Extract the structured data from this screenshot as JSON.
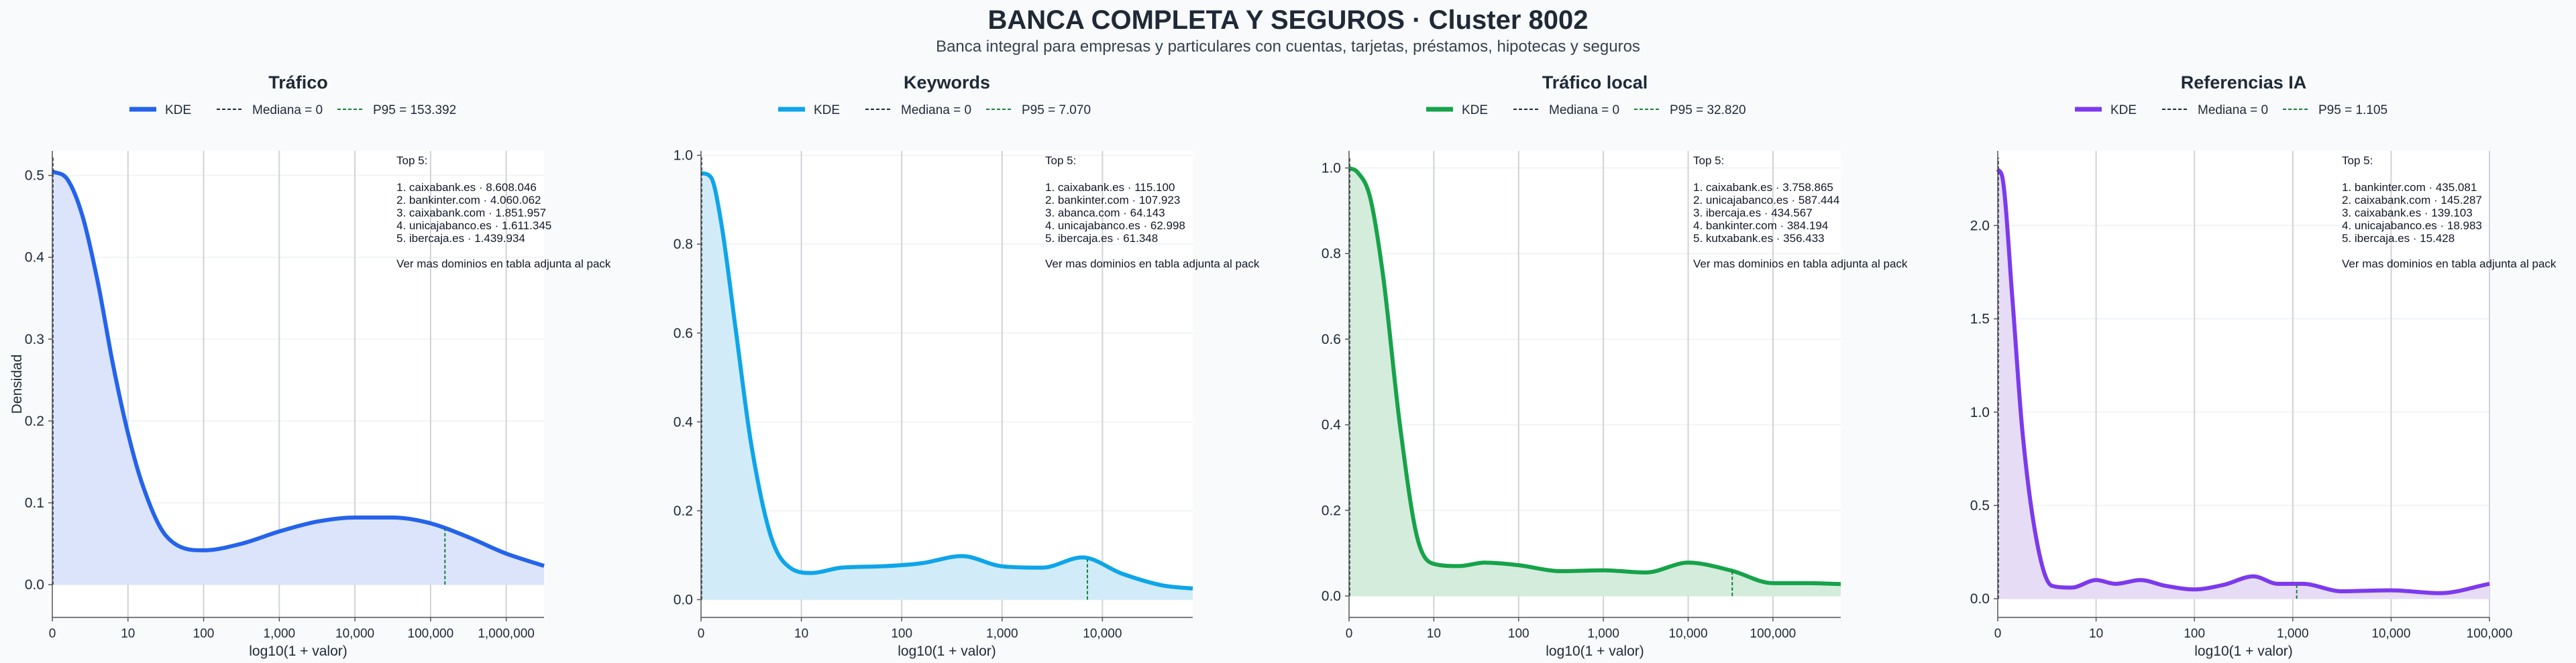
{
  "header": {
    "title": "BANCA COMPLETA Y SEGUROS · Cluster 8002",
    "subtitle": "Banca integral para empresas y particulares con cuentas, tarjetas, préstamos, hipotecas y seguros"
  },
  "chart_data": [
    {
      "type": "area",
      "title": "Tráfico",
      "xlabel": "log10(1 + valor)",
      "ylabel": "Densidad",
      "color": "#2563eb",
      "fill": "#dbe4fb",
      "legend": {
        "kde": "KDE",
        "median": "Mediana = 0",
        "p95": "P95 = 153.392"
      },
      "xlim": [
        0,
        6.5
      ],
      "ylim": [
        -0.04,
        0.53
      ],
      "xticks": [
        [
          0,
          "0"
        ],
        [
          1,
          "10"
        ],
        [
          2,
          "100"
        ],
        [
          3,
          "1,000"
        ],
        [
          4,
          "10,000"
        ],
        [
          5,
          "100,000"
        ],
        [
          6,
          "1,000,000"
        ]
      ],
      "yticks": [
        [
          0,
          "0.0"
        ],
        [
          0.1,
          "0.1"
        ],
        [
          0.2,
          "0.2"
        ],
        [
          0.3,
          "0.3"
        ],
        [
          0.4,
          "0.4"
        ],
        [
          0.5,
          "0.5"
        ]
      ],
      "p95_x": 5.19,
      "kde": {
        "x": [
          0,
          0.2,
          0.4,
          0.6,
          0.8,
          1.0,
          1.2,
          1.5,
          2.0,
          2.5,
          3.0,
          3.5,
          4.0,
          4.5,
          5.0,
          5.5,
          6.0,
          6.5
        ],
        "y": [
          0.505,
          0.495,
          0.45,
          0.37,
          0.27,
          0.185,
          0.12,
          0.06,
          0.042,
          0.05,
          0.065,
          0.077,
          0.082,
          0.082,
          0.075,
          0.058,
          0.038,
          0.023
        ]
      },
      "annotation": {
        "header": "Top 5:",
        "items": [
          "1. caixabank.es · 8.608.046",
          "2. bankinter.com · 4.060.062",
          "3. caixabank.com · 1.851.957",
          "4. unicajabanco.es · 1.611.345",
          "5. ibercaja.es · 1.439.934"
        ],
        "footer": "Ver mas dominios en tabla adjunta al pack"
      }
    },
    {
      "type": "area",
      "title": "Keywords",
      "xlabel": "log10(1 + valor)",
      "ylabel": "",
      "color": "#0ea5e9",
      "fill": "#d1ecf8",
      "legend": {
        "kde": "KDE",
        "median": "Mediana = 0",
        "p95": "P95 = 7.070"
      },
      "xlim": [
        0,
        4.9
      ],
      "ylim": [
        -0.04,
        1.01
      ],
      "xticks": [
        [
          0,
          "0"
        ],
        [
          1,
          "10"
        ],
        [
          2,
          "100"
        ],
        [
          3,
          "1,000"
        ],
        [
          4,
          "10,000"
        ]
      ],
      "yticks": [
        [
          0,
          "0.0"
        ],
        [
          0.2,
          "0.2"
        ],
        [
          0.4,
          "0.4"
        ],
        [
          0.6,
          "0.6"
        ],
        [
          0.8,
          "0.8"
        ],
        [
          1.0,
          "1.0"
        ]
      ],
      "p95_x": 3.85,
      "kde": {
        "x": [
          0,
          0.1,
          0.2,
          0.35,
          0.5,
          0.7,
          0.9,
          1.1,
          1.4,
          1.8,
          2.2,
          2.6,
          3.0,
          3.4,
          3.8,
          4.2,
          4.6,
          4.9
        ],
        "y": [
          0.96,
          0.95,
          0.85,
          0.6,
          0.35,
          0.14,
          0.07,
          0.06,
          0.072,
          0.075,
          0.082,
          0.098,
          0.075,
          0.072,
          0.095,
          0.058,
          0.032,
          0.025
        ]
      },
      "annotation": {
        "header": "Top 5:",
        "items": [
          "1. caixabank.es · 115.100",
          "2. bankinter.com · 107.923",
          "3. abanca.com · 64.143",
          "4. unicajabanco.es · 62.998",
          "5. ibercaja.es · 61.348"
        ],
        "footer": "Ver mas dominios en tabla adjunta al pack"
      }
    },
    {
      "type": "area",
      "title": "Tráfico local",
      "xlabel": "log10(1 + valor)",
      "ylabel": "",
      "color": "#16a34a",
      "fill": "#d4ecdb",
      "legend": {
        "kde": "KDE",
        "median": "Mediana = 0",
        "p95": "P95 = 32.820"
      },
      "xlim": [
        0,
        5.8
      ],
      "ylim": [
        -0.05,
        1.04
      ],
      "xticks": [
        [
          0,
          "0"
        ],
        [
          1,
          "10"
        ],
        [
          2,
          "100"
        ],
        [
          3,
          "1,000"
        ],
        [
          4,
          "10,000"
        ],
        [
          5,
          "100,000"
        ]
      ],
      "yticks": [
        [
          0,
          "0.0"
        ],
        [
          0.2,
          "0.2"
        ],
        [
          0.4,
          "0.4"
        ],
        [
          0.6,
          "0.6"
        ],
        [
          0.8,
          "0.8"
        ],
        [
          1.0,
          "1.0"
        ]
      ],
      "p95_x": 4.52,
      "kde": {
        "x": [
          0,
          0.1,
          0.25,
          0.4,
          0.6,
          0.8,
          1.0,
          1.3,
          1.6,
          2.0,
          2.5,
          3.0,
          3.5,
          4.0,
          4.5,
          5.0,
          5.4,
          5.8
        ],
        "y": [
          1.0,
          0.99,
          0.93,
          0.75,
          0.4,
          0.14,
          0.075,
          0.07,
          0.078,
          0.072,
          0.058,
          0.06,
          0.055,
          0.078,
          0.06,
          0.03,
          0.03,
          0.028
        ]
      },
      "annotation": {
        "header": "Top 5:",
        "items": [
          "1. caixabank.es · 3.758.865",
          "2. unicajabanco.es · 587.444",
          "3. ibercaja.es · 434.567",
          "4. bankinter.com · 384.194",
          "5. kutxabank.es · 356.433"
        ],
        "footer": "Ver mas dominios en tabla adjunta al pack"
      }
    },
    {
      "type": "area",
      "title": "Referencias IA",
      "xlabel": "log10(1 + valor)",
      "ylabel": "",
      "color": "#7c3aed",
      "fill": "#e7dcf6",
      "legend": {
        "kde": "KDE",
        "median": "Mediana = 0",
        "p95": "P95 = 1.105"
      },
      "xlim": [
        0,
        5.0
      ],
      "ylim": [
        -0.1,
        2.4
      ],
      "xticks": [
        [
          0,
          "0"
        ],
        [
          1,
          "10"
        ],
        [
          2,
          "100"
        ],
        [
          3,
          "1,000"
        ],
        [
          4,
          "10,000"
        ],
        [
          5,
          "100,000"
        ]
      ],
      "yticks": [
        [
          0,
          "0.0"
        ],
        [
          0.5,
          "0.5"
        ],
        [
          1.0,
          "1.0"
        ],
        [
          1.5,
          "1.5"
        ],
        [
          2.0,
          "2.0"
        ]
      ],
      "p95_x": 3.04,
      "kde": {
        "x": [
          0,
          0.05,
          0.15,
          0.25,
          0.4,
          0.55,
          0.75,
          1.0,
          1.2,
          1.45,
          1.7,
          2.0,
          2.3,
          2.6,
          2.85,
          3.1,
          3.5,
          4.0,
          4.5,
          5.0
        ],
        "y": [
          2.3,
          2.25,
          1.6,
          0.9,
          0.3,
          0.07,
          0.06,
          0.1,
          0.08,
          0.1,
          0.07,
          0.05,
          0.075,
          0.12,
          0.08,
          0.08,
          0.04,
          0.045,
          0.03,
          0.08
        ]
      },
      "annotation": {
        "header": "Top 5:",
        "items": [
          "1. bankinter.com · 435.081",
          "2. caixabank.com · 145.287",
          "3. caixabank.es · 139.103",
          "4. unicajabanco.es · 18.983",
          "5. ibercaja.es · 15.428"
        ],
        "footer": "Ver mas dominios en tabla adjunta al pack"
      }
    }
  ]
}
